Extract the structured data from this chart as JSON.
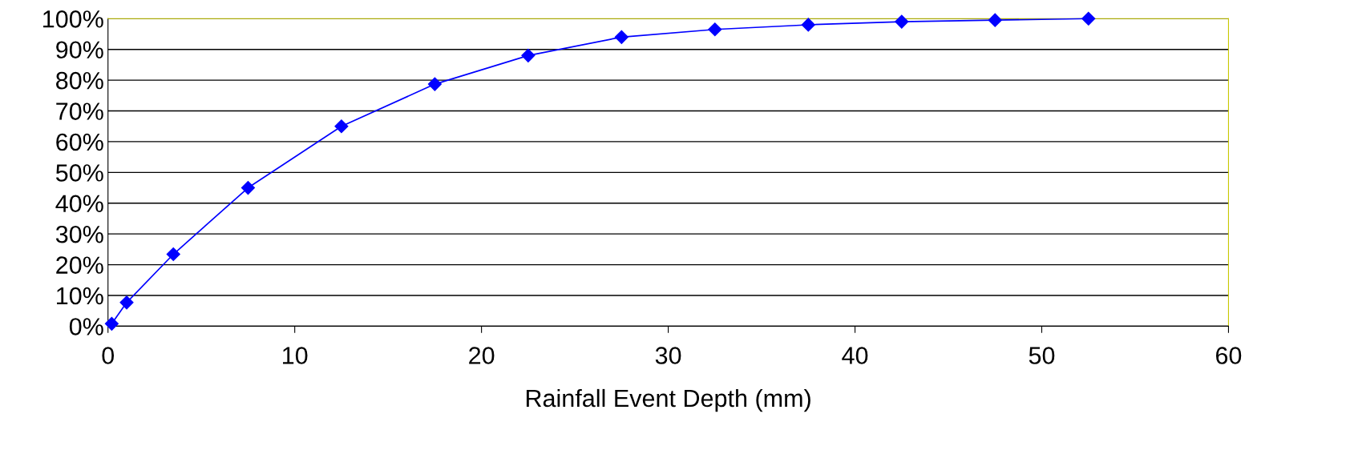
{
  "chart_data": {
    "type": "line",
    "xlabel": "Rainfall Event Depth (mm)",
    "x": [
      0.2,
      1,
      3.5,
      7.5,
      12.5,
      17.5,
      22.5,
      27.5,
      32.5,
      37.5,
      42.5,
      47.5,
      52.5
    ],
    "series": [
      {
        "color": "#0000ff",
        "values": [
          0.8,
          7.7,
          23.4,
          45,
          65,
          78.7,
          88,
          94,
          96.5,
          98,
          99,
          99.5,
          100
        ]
      }
    ],
    "marker": "diamond",
    "line_style": "solid",
    "grid": "y",
    "legend": false,
    "xlim": [
      0,
      60
    ],
    "xticks": [
      0,
      10,
      20,
      30,
      40,
      50,
      60
    ],
    "ylim": [
      0,
      100
    ],
    "yticks": [
      {
        "value": 0,
        "label": "0%"
      },
      {
        "value": 10,
        "label": "10%"
      },
      {
        "value": 20,
        "label": "20%"
      },
      {
        "value": 30,
        "label": "30%"
      },
      {
        "value": 40,
        "label": "40%"
      },
      {
        "value": 50,
        "label": "50%"
      },
      {
        "value": 60,
        "label": "60%"
      },
      {
        "value": 70,
        "label": "70%"
      },
      {
        "value": 80,
        "label": "80%"
      },
      {
        "value": 90,
        "label": "90%"
      },
      {
        "value": 100,
        "label": "100%"
      }
    ]
  }
}
